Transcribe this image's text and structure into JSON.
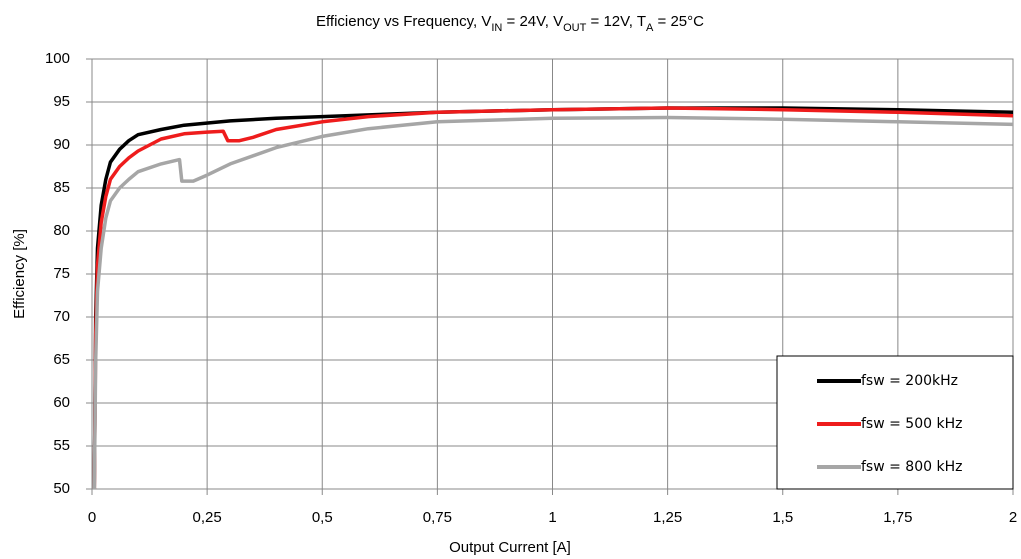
{
  "chart_data": {
    "type": "line",
    "title": [
      "Efficiency vs Frequency, V",
      "IN",
      " = 24V, V",
      "OUT",
      " = 12V, T",
      "A",
      " = 25°C"
    ],
    "x_label": "Output Current [A]",
    "y_label": "Efficiency [%]",
    "xlim": [
      0,
      2
    ],
    "ylim": [
      50,
      100
    ],
    "xticks": [
      0,
      {
        "value": 0.25,
        "label": "0,25"
      },
      {
        "value": 0.5,
        "label": "0,5"
      },
      {
        "value": 0.75,
        "label": "0,75"
      },
      1,
      {
        "value": 1.25,
        "label": "1,25"
      },
      {
        "value": 1.5,
        "label": "1,5"
      },
      {
        "value": 1.75,
        "label": "1,75"
      },
      2
    ],
    "yticks": [
      50,
      55,
      60,
      65,
      70,
      75,
      80,
      85,
      90,
      95,
      100
    ],
    "grid": true,
    "legend": "lower right",
    "series": [
      {
        "name": "fsw = 200kHz",
        "color": "#000000",
        "x": [
          0.005,
          0.008,
          0.012,
          0.02,
          0.03,
          0.04,
          0.06,
          0.08,
          0.1,
          0.15,
          0.2,
          0.3,
          0.4,
          0.5,
          0.75,
          1,
          1.25,
          1.5,
          1.75,
          2
        ],
        "values": [
          50,
          70,
          78,
          83,
          86,
          88,
          89.5,
          90.5,
          91.2,
          91.8,
          92.3,
          92.8,
          93.1,
          93.3,
          93.8,
          94.1,
          94.3,
          94.3,
          94.1,
          93.8
        ]
      },
      {
        "name": "fsw = 500 kHz",
        "color": "#ee1c1c",
        "x": [
          0.005,
          0.008,
          0.012,
          0.02,
          0.03,
          0.04,
          0.06,
          0.08,
          0.1,
          0.15,
          0.2,
          0.25,
          0.285,
          0.295,
          0.32,
          0.35,
          0.4,
          0.5,
          0.6,
          0.75,
          1,
          1.25,
          1.5,
          1.75,
          2
        ],
        "values": [
          50,
          68,
          76,
          81,
          84,
          86,
          87.5,
          88.5,
          89.3,
          90.7,
          91.3,
          91.5,
          91.6,
          90.5,
          90.5,
          90.9,
          91.8,
          92.7,
          93.3,
          93.8,
          94.1,
          94.3,
          94.1,
          93.8,
          93.4
        ]
      },
      {
        "name": "fsw = 800 kHz",
        "color": "#a6a6a6",
        "x": [
          0.005,
          0.008,
          0.012,
          0.02,
          0.03,
          0.04,
          0.06,
          0.08,
          0.1,
          0.15,
          0.19,
          0.195,
          0.22,
          0.25,
          0.3,
          0.4,
          0.5,
          0.6,
          0.75,
          1,
          1.25,
          1.5,
          1.75,
          2
        ],
        "values": [
          50,
          65,
          73,
          78,
          81.5,
          83.5,
          85,
          86,
          86.9,
          87.8,
          88.3,
          85.8,
          85.8,
          86.5,
          87.8,
          89.7,
          91,
          91.9,
          92.7,
          93.1,
          93.2,
          93,
          92.7,
          92.4
        ]
      }
    ]
  }
}
